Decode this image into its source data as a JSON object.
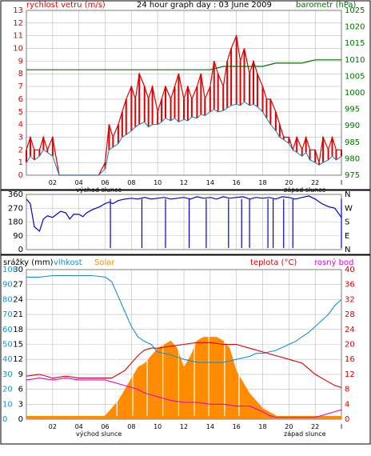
{
  "colors": {
    "wind": "#e00000",
    "gust": "#e00000",
    "wind_avg": "#1a7fb0",
    "pressure": "#007000",
    "direction": "#0000cc",
    "humidity": "#1a8fd0",
    "solar": "#ff8c00",
    "temperature": "#dd0000",
    "dewpoint": "#dd00dd",
    "rain": "#0000cc",
    "grid": "#bbbbbb",
    "frame": "#000000"
  },
  "chart_data": [
    {
      "type": "line",
      "title": "24 hour graph day : 03 June 2009",
      "left_label": "rychlost vetru (m/s)",
      "right_label": "barometr (hPa)",
      "x_ticks": [
        "02",
        "04",
        "06",
        "08",
        "10",
        "12",
        "14",
        "16",
        "18",
        "20",
        "22"
      ],
      "sunrise_label": "východ slunce",
      "sunset_label": "západ slunce",
      "ylim_left": [
        0,
        13
      ],
      "y_ticks_left": [
        "0",
        "1",
        "2",
        "3",
        "4",
        "5",
        "6",
        "7",
        "8",
        "9",
        "10",
        "11",
        "12",
        "13"
      ],
      "ylim_right": [
        975,
        1025
      ],
      "y_ticks_right": [
        "975",
        "980",
        "985",
        "990",
        "995",
        "1000",
        "1005",
        "1010",
        "1015",
        "1020",
        "1025"
      ],
      "series": [
        {
          "key": "gust",
          "x": [
            0,
            0.3,
            0.6,
            1,
            1.3,
            1.6,
            2,
            2.5,
            3,
            3.5,
            4,
            4.5,
            5,
            5.5,
            6,
            6.3,
            6.6,
            7,
            7.3,
            7.6,
            8,
            8.3,
            8.6,
            9,
            9.3,
            9.6,
            10,
            10.3,
            10.6,
            11,
            11.3,
            11.6,
            12,
            12.3,
            12.6,
            13,
            13.3,
            13.6,
            14,
            14.3,
            14.6,
            15,
            15.3,
            15.6,
            16,
            16.3,
            16.6,
            17,
            17.3,
            17.6,
            18,
            18.3,
            18.6,
            19,
            19.3,
            19.6,
            20,
            20.3,
            20.6,
            21,
            21.3,
            21.6,
            22,
            22.3,
            22.6,
            23,
            23.3,
            23.6,
            24
          ],
          "values": [
            2,
            3,
            2,
            2,
            3,
            2,
            3,
            0,
            0,
            0,
            0,
            0,
            0,
            0,
            1,
            4,
            3,
            4,
            5,
            6,
            7,
            6,
            8,
            7,
            6,
            7,
            5,
            6,
            7,
            6,
            7,
            8,
            6,
            7,
            6,
            7,
            8,
            6,
            7,
            9,
            8,
            7,
            9,
            10,
            11,
            9,
            10,
            8,
            9,
            8,
            7,
            6,
            6,
            5,
            4,
            3,
            3,
            2,
            3,
            2,
            3,
            2,
            2,
            1,
            3,
            2,
            3,
            2,
            2
          ]
        },
        {
          "key": "wind_avg",
          "x": [
            0,
            0.3,
            0.6,
            1,
            1.3,
            1.6,
            2,
            2.5,
            3,
            3.5,
            4,
            4.5,
            5,
            5.5,
            6,
            6.3,
            6.6,
            7,
            7.3,
            7.6,
            8,
            8.3,
            8.6,
            9,
            9.3,
            9.6,
            10,
            10.3,
            10.6,
            11,
            11.3,
            11.6,
            12,
            12.3,
            12.6,
            13,
            13.3,
            13.6,
            14,
            14.3,
            14.6,
            15,
            15.3,
            15.6,
            16,
            16.3,
            16.6,
            17,
            17.3,
            17.6,
            18,
            18.3,
            18.6,
            19,
            19.3,
            19.6,
            20,
            20.3,
            20.6,
            21,
            21.3,
            21.6,
            22,
            22.3,
            22.6,
            23,
            23.3,
            23.6,
            24
          ],
          "values": [
            1,
            1.5,
            1.2,
            1.5,
            2,
            1.8,
            1.5,
            0,
            0,
            0,
            0,
            0,
            0,
            0,
            0.5,
            2,
            2.2,
            2.5,
            3,
            3.2,
            3.5,
            3.8,
            4,
            4.2,
            3.8,
            4,
            4,
            4.2,
            4.5,
            4.3,
            4.5,
            4.2,
            4.4,
            4.3,
            4.6,
            4.5,
            4.8,
            4.7,
            5,
            5.2,
            5,
            5.1,
            5.3,
            5.5,
            5.6,
            5.5,
            5.8,
            5.5,
            5.6,
            5.4,
            5,
            4.5,
            4,
            3.5,
            3,
            2.8,
            2.5,
            2,
            1.8,
            1.5,
            1.8,
            1.2,
            1,
            0.8,
            1,
            1.2,
            1.5,
            1.2,
            1.5
          ]
        },
        {
          "key": "pressure",
          "x": [
            0,
            3,
            6,
            9,
            10,
            12,
            14,
            15,
            16,
            17,
            18,
            19,
            20,
            21,
            22,
            23,
            24
          ],
          "values": [
            1007,
            1007,
            1007,
            1007,
            1007,
            1007,
            1007,
            1008,
            1008,
            1008,
            1008,
            1009,
            1009,
            1009,
            1010,
            1010,
            1010
          ]
        }
      ]
    },
    {
      "type": "line",
      "x_ticks": [
        "02",
        "04",
        "06",
        "08",
        "10",
        "12",
        "14",
        "16",
        "18",
        "20",
        "22"
      ],
      "ylim_left": [
        0,
        360
      ],
      "y_ticks_left": [
        "0",
        "90",
        "180",
        "270",
        "360"
      ],
      "y_ticks_right": [
        "N",
        "E",
        "S",
        "W",
        "N"
      ],
      "series": [
        {
          "key": "direction",
          "x": [
            0,
            0.3,
            0.6,
            1,
            1.3,
            1.6,
            2,
            2.3,
            2.6,
            3,
            3.3,
            3.6,
            4,
            4.3,
            4.6,
            5,
            5.3,
            5.6,
            6,
            6.3,
            6.6,
            7,
            7.5,
            8,
            8.5,
            9,
            9.5,
            10,
            10.5,
            11,
            11.5,
            12,
            12.5,
            13,
            13.5,
            14,
            14.5,
            15,
            15.5,
            16,
            16.5,
            17,
            17.5,
            18,
            18.5,
            19,
            19.5,
            20,
            20.5,
            21,
            21.5,
            22,
            22.5,
            23,
            23.5,
            24
          ],
          "values": [
            330,
            300,
            150,
            120,
            200,
            220,
            210,
            230,
            250,
            240,
            200,
            230,
            230,
            215,
            240,
            260,
            270,
            280,
            300,
            310,
            300,
            320,
            330,
            335,
            330,
            340,
            330,
            335,
            340,
            330,
            335,
            340,
            330,
            345,
            335,
            340,
            330,
            345,
            335,
            340,
            345,
            330,
            340,
            335,
            340,
            330,
            345,
            340,
            330,
            340,
            350,
            330,
            300,
            280,
            270,
            210
          ]
        }
      ]
    },
    {
      "type": "line",
      "left_label_rain": "srážky (mm)",
      "left_label_humidity": "vlhkost",
      "solar_label": "Solar",
      "right_label_temp": "teplota (°C)",
      "right_label_dew": "rosný bod",
      "x_ticks": [
        "02",
        "04",
        "06",
        "08",
        "10",
        "12",
        "14",
        "16",
        "18",
        "20",
        "22"
      ],
      "sunrise_label": "východ slunce",
      "sunset_label": "západ slunce",
      "ylim_humidity": [
        0,
        100
      ],
      "y_ticks_humidity": [
        "0",
        "10",
        "20",
        "30",
        "40",
        "50",
        "60",
        "70",
        "80",
        "90",
        "100"
      ],
      "ylim_rain": [
        0,
        30
      ],
      "y_ticks_rain": [
        "0",
        "3",
        "6",
        "9",
        "12",
        "15",
        "18",
        "21",
        "24",
        "27",
        "30"
      ],
      "ylim_temp": [
        0,
        40
      ],
      "y_ticks_temp": [
        "0",
        "4",
        "8",
        "12",
        "16",
        "20",
        "24",
        "28",
        "32",
        "36",
        "40"
      ],
      "series": [
        {
          "key": "humidity",
          "x": [
            0,
            1,
            2,
            3,
            4,
            5,
            6,
            6.5,
            7,
            7.5,
            8,
            8.5,
            9,
            9.5,
            10,
            11,
            12,
            13,
            14,
            15,
            16,
            17,
            17.5,
            18,
            18.5,
            19,
            19.5,
            20,
            20.5,
            21,
            21.5,
            22,
            22.5,
            23,
            23.5,
            24
          ],
          "values": [
            95,
            95,
            96,
            96,
            96,
            96,
            95,
            92,
            82,
            72,
            62,
            55,
            52,
            50,
            45,
            43,
            40,
            38,
            38,
            38,
            40,
            42,
            44,
            44,
            45,
            46,
            48,
            50,
            52,
            55,
            58,
            62,
            66,
            70,
            76,
            80
          ]
        },
        {
          "key": "temperature",
          "x": [
            0,
            1,
            2,
            3,
            4,
            5,
            6,
            6.5,
            7,
            7.5,
            8,
            8.5,
            9,
            9.5,
            10,
            11,
            12,
            13,
            14,
            15,
            16,
            17,
            18,
            19,
            20,
            21,
            22,
            23,
            23.5,
            24
          ],
          "values": [
            11.5,
            12,
            11,
            11.5,
            11,
            11,
            11,
            11,
            12,
            13,
            15,
            17,
            18.5,
            19,
            19,
            19.5,
            20,
            20.5,
            20.5,
            20,
            20,
            19,
            18,
            17,
            16,
            15,
            12,
            10,
            9,
            8.5
          ]
        },
        {
          "key": "dewpoint",
          "x": [
            0,
            1,
            2,
            3,
            4,
            5,
            6,
            6.5,
            7,
            7.5,
            8,
            8.5,
            9,
            9.5,
            10,
            11,
            12,
            13,
            14,
            15,
            16,
            17,
            18,
            18.5,
            19,
            19.5,
            20,
            21,
            22,
            23,
            23.5,
            24
          ],
          "values": [
            10.5,
            11,
            10.5,
            11,
            10.5,
            10.5,
            10.5,
            10,
            9.5,
            9,
            8.5,
            8,
            7,
            6.5,
            6,
            5,
            4.5,
            4.5,
            4,
            4,
            3.5,
            3.5,
            2,
            1,
            0.5,
            0.5,
            0.5,
            0.5,
            0.5,
            1.5,
            2,
            2.5
          ]
        },
        {
          "key": "solar",
          "x": [
            0,
            4,
            5.5,
            6,
            6.5,
            7,
            7.5,
            8,
            8.5,
            9,
            9.5,
            10,
            10.5,
            11,
            11.5,
            12,
            12.5,
            13,
            13.5,
            14,
            14.5,
            15,
            15.5,
            16,
            16.5,
            17,
            17.5,
            18,
            18.5,
            19,
            19.5,
            20,
            24
          ],
          "values": [
            0,
            0,
            0,
            1,
            3,
            5,
            8,
            11,
            14,
            15,
            17,
            19,
            20,
            21,
            19,
            14,
            17,
            21,
            22,
            22,
            22,
            21,
            19,
            13,
            10,
            7,
            5,
            3,
            2,
            1,
            0,
            0,
            0
          ]
        },
        {
          "key": "rain",
          "x": [
            0,
            24
          ],
          "values": [
            0,
            0
          ]
        }
      ]
    }
  ]
}
